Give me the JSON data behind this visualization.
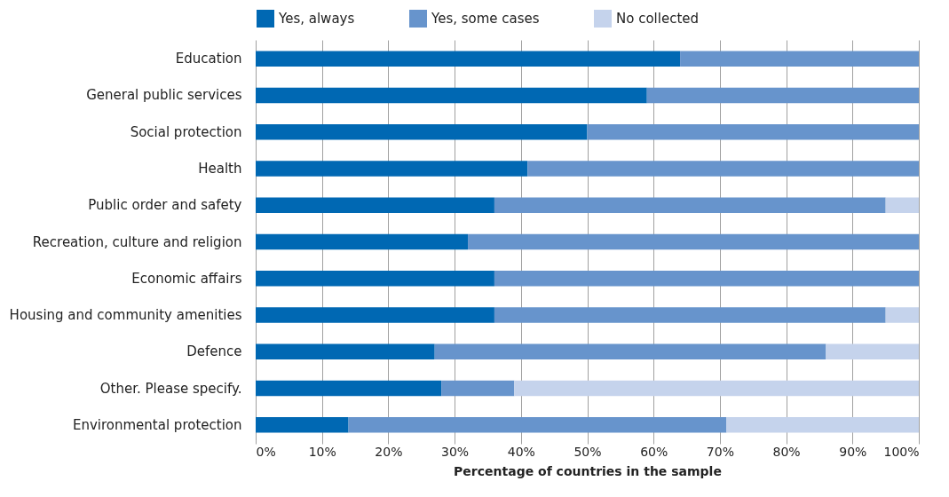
{
  "chart_data": {
    "type": "bar",
    "orientation": "horizontal",
    "stacked": true,
    "xlabel": "Percentage of countries in the sample",
    "categories": [
      "Education",
      "General public services",
      "Social protection",
      "Health",
      "Public order and safety",
      "Recreation, culture and religion",
      "Economic affairs",
      "Housing and community amenities",
      "Defence",
      "Other. Please specify.",
      "Environmental protection"
    ],
    "series": [
      {
        "name": "Yes, always",
        "color": "#0068b3",
        "values": [
          64,
          59,
          50,
          41,
          36,
          32,
          36,
          36,
          27,
          28,
          14
        ]
      },
      {
        "name": "Yes, some cases",
        "color": "#6794cc",
        "values": [
          36,
          41,
          50,
          59,
          59,
          68,
          64,
          59,
          59,
          11,
          57
        ]
      },
      {
        "name": "No collected",
        "color": "#c5d3ec",
        "values": [
          0,
          0,
          0,
          0,
          5,
          0,
          0,
          5,
          14,
          61,
          29
        ]
      }
    ],
    "xlim": [
      0,
      100
    ],
    "xticks": [
      {
        "value": 0,
        "label": "0%"
      },
      {
        "value": 10,
        "label": "10%"
      },
      {
        "value": 20,
        "label": "20%"
      },
      {
        "value": 30,
        "label": "30%"
      },
      {
        "value": 40,
        "label": "40%"
      },
      {
        "value": 50,
        "label": "50%"
      },
      {
        "value": 60,
        "label": "60%"
      },
      {
        "value": 70,
        "label": "70%"
      },
      {
        "value": 80,
        "label": "80%"
      },
      {
        "value": 90,
        "label": "90%"
      },
      {
        "value": 100,
        "label": "100%"
      }
    ],
    "grid": "x",
    "legend": "top"
  }
}
